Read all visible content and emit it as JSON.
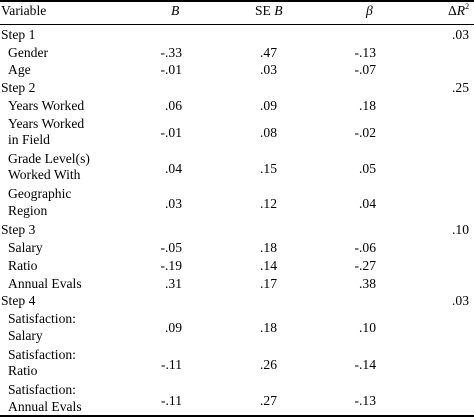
{
  "header": {
    "variable": "Variable",
    "b": "B",
    "se_b_prefix": "SE ",
    "se_b_italic": "B",
    "beta": "β",
    "delta_prefix": "Δ",
    "delta_italic": "R",
    "delta_sup": "2"
  },
  "steps": [
    {
      "label": "Step 1",
      "r2": ".03"
    },
    {
      "label": "Step 2",
      "r2": ".25"
    },
    {
      "label": "Step 3",
      "r2": ".10"
    },
    {
      "label": "Step 4",
      "r2": ".03"
    }
  ],
  "rows": [
    {
      "lines": [
        "Gender"
      ],
      "b": "-.33",
      "se": ".47",
      "beta": "-.13"
    },
    {
      "lines": [
        "Age"
      ],
      "b": "-.01",
      "se": ".03",
      "beta": "-.07"
    },
    {
      "lines": [
        "Years Worked"
      ],
      "b": ".06",
      "se": ".09",
      "beta": ".18"
    },
    {
      "lines": [
        "Years Worked",
        "in Field"
      ],
      "b": "-.01",
      "se": ".08",
      "beta": "-.02"
    },
    {
      "lines": [
        "Grade Level(s)",
        "Worked With"
      ],
      "b": ".04",
      "se": ".15",
      "beta": ".05"
    },
    {
      "lines": [
        "Geographic",
        "Region"
      ],
      "b": ".03",
      "se": ".12",
      "beta": ".04"
    },
    {
      "lines": [
        "Salary"
      ],
      "b": "-.05",
      "se": ".18",
      "beta": "-.06"
    },
    {
      "lines": [
        "Ratio"
      ],
      "b": "-.19",
      "se": ".14",
      "beta": "-.27"
    },
    {
      "lines": [
        "Annual Evals"
      ],
      "b": ".31",
      "se": ".17",
      "beta": ".38"
    },
    {
      "lines": [
        "Satisfaction:",
        "Salary"
      ],
      "b": ".09",
      "se": ".18",
      "beta": ".10"
    },
    {
      "lines": [
        "Satisfaction:",
        "Ratio"
      ],
      "b": "-.11",
      "se": ".26",
      "beta": "-.14"
    },
    {
      "lines": [
        "Satisfaction:",
        "Annual Evals"
      ],
      "b": "-.11",
      "se": ".27",
      "beta": "-.13"
    }
  ]
}
